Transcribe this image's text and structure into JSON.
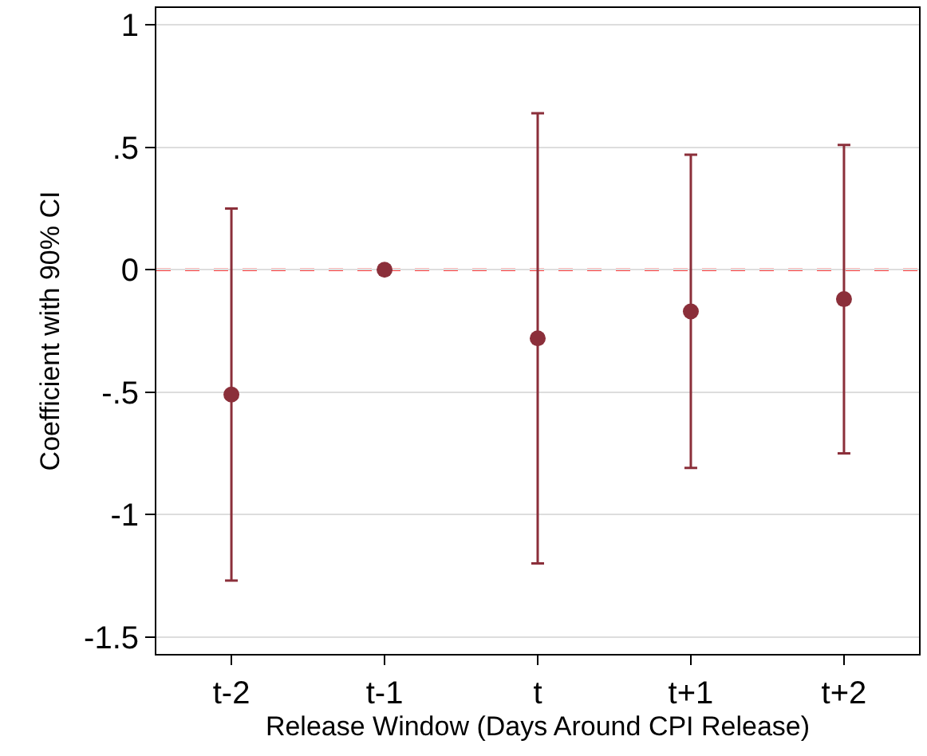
{
  "chart_data": {
    "type": "scatter",
    "xlabel": "Release Window (Days Around CPI Release)",
    "ylabel": "Coefficient with 90% CI",
    "categories": [
      "t-2",
      "t-1",
      "t",
      "t+1",
      "t+2"
    ],
    "series": [
      {
        "color": "#8b2f3a",
        "values": [
          -0.51,
          0,
          -0.28,
          -0.17,
          -0.12
        ],
        "errors": [
          [
            -1.27,
            0.25
          ],
          null,
          [
            -1.2,
            0.64
          ],
          [
            -0.81,
            0.47
          ],
          [
            -0.75,
            0.51
          ]
        ]
      }
    ],
    "marker": "circle",
    "ylim": [
      -1.57,
      1.07
    ],
    "yticks": [
      {
        "value": 1,
        "label": "1"
      },
      {
        "value": 0.5,
        "label": ".5"
      },
      0,
      {
        "value": -0.5,
        "label": "-.5"
      },
      -1,
      -1.5
    ],
    "grid": "y",
    "legend": false,
    "ref_lines": [
      {
        "axis": "y",
        "value": 0,
        "color": "#ff0000",
        "line_style": "dashed"
      }
    ]
  }
}
